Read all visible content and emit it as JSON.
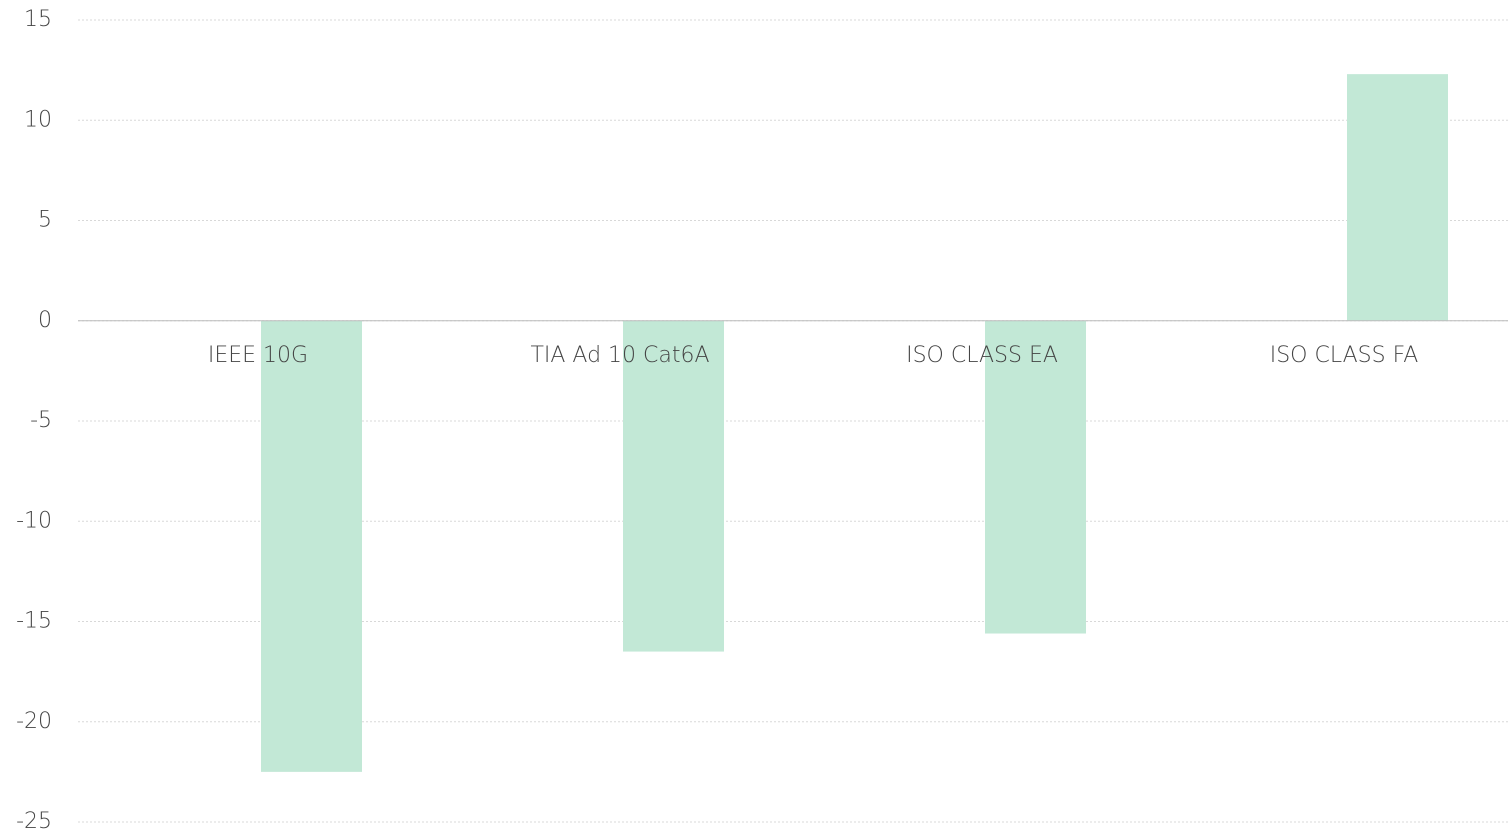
{
  "chart_data": {
    "type": "bar",
    "categories": [
      "IEEE 10G",
      "TIA Ad 10 Cat6A",
      "ISO CLASS EA",
      "ISO CLASS FA"
    ],
    "values": [
      -22.5,
      -16.5,
      -15.6,
      12.3
    ],
    "color": "#c2e8d6",
    "ylim": [
      -25,
      15
    ],
    "yticks": [
      -25,
      -20,
      -15,
      -10,
      -5,
      0,
      5,
      10,
      15
    ],
    "grid": true
  }
}
